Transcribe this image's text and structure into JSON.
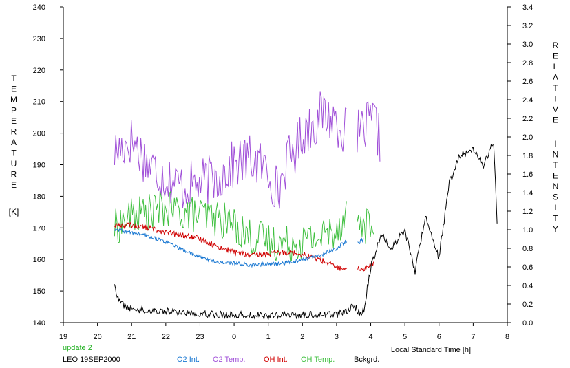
{
  "chart_data": {
    "type": "line",
    "left_axis": {
      "label_letters": [
        "T",
        "E",
        "M",
        "P",
        "E",
        "R",
        "A",
        "T",
        "U",
        "R",
        "E"
      ],
      "unit": "[K]",
      "ylim": [
        140,
        240
      ],
      "ticks": [
        140,
        150,
        160,
        170,
        180,
        190,
        200,
        210,
        220,
        230,
        240
      ]
    },
    "right_axis": {
      "label_word1_letters": [
        "R",
        "E",
        "L",
        "A",
        "T",
        "I",
        "V",
        "E"
      ],
      "label_word2_letters": [
        "I",
        "N",
        "T",
        "E",
        "N",
        "S",
        "I",
        "T",
        "Y"
      ],
      "ylim": [
        0.0,
        3.4
      ],
      "ticks": [
        "0.0",
        "0.2",
        "0.4",
        "0.6",
        "0.8",
        "1.0",
        "1.2",
        "1.4",
        "1.6",
        "1.8",
        "2.0",
        "2.2",
        "2.4",
        "2.6",
        "2.8",
        "3.0",
        "3.2",
        "3.4"
      ]
    },
    "x_axis": {
      "label": "Local Standard Time [h]",
      "xlim": [
        19,
        32
      ],
      "ticks": [
        "19",
        "20",
        "21",
        "22",
        "23",
        "0",
        "1",
        "2",
        "3",
        "4",
        "5",
        "6",
        "7",
        "8"
      ]
    },
    "update_text": "update 2",
    "station_text": "LEO 19SEP2000",
    "colors": {
      "o2_int": "#1a78d2",
      "o2_temp": "#a050d8",
      "oh_int": "#d00000",
      "oh_temp": "#40c040",
      "bckgrd": "#000000",
      "update": "#20b020"
    },
    "series": [
      {
        "key": "o2_temp",
        "name": "O2 Temp.",
        "axis": "left",
        "x": [
          20.5,
          21,
          21.5,
          22,
          22.5,
          23,
          23.5,
          24,
          24.5,
          25,
          25.3,
          25.5,
          25.8,
          26,
          26.3,
          26.6,
          27,
          27.3,
          27.5,
          27.8,
          28.1,
          28.3
        ],
        "y": [
          194,
          198,
          190,
          186,
          183,
          184,
          186,
          190,
          192,
          188,
          181,
          190,
          195,
          200,
          203,
          206,
          204,
          200,
          198,
          201,
          204,
          196
        ],
        "noise": 8,
        "step": 0.035,
        "gap": [
          27.3,
          27.6
        ]
      },
      {
        "key": "oh_temp",
        "name": "OH Temp.",
        "axis": "left",
        "x": [
          20.5,
          21,
          21.5,
          22,
          22.5,
          23,
          23.5,
          24,
          24.5,
          25,
          25.5,
          26,
          26.5,
          27,
          27.3,
          27.6,
          27.8,
          28.1
        ],
        "y": [
          170,
          174,
          175,
          176,
          175,
          174,
          173,
          171,
          167,
          166,
          165,
          166,
          167,
          170,
          175,
          172,
          171,
          170
        ],
        "noise": 6,
        "step": 0.035,
        "gap": [
          27.3,
          27.6
        ]
      },
      {
        "key": "oh_int",
        "name": "OH Int.",
        "axis": "right",
        "x": [
          20.5,
          21,
          21.5,
          22,
          22.5,
          23,
          23.5,
          24,
          24.5,
          25,
          25.5,
          26,
          26.5,
          27,
          27.3,
          27.6,
          27.8,
          28.1
        ],
        "y": [
          1.05,
          1.05,
          1.02,
          0.97,
          0.94,
          0.9,
          0.82,
          0.76,
          0.72,
          0.74,
          0.76,
          0.74,
          0.68,
          0.6,
          0.56,
          0.58,
          0.58,
          0.64
        ],
        "noise": 0.03,
        "step": 0.02,
        "gap": [
          27.3,
          27.6
        ]
      },
      {
        "key": "o2_int",
        "name": "O2 Int.",
        "axis": "right",
        "x": [
          20.5,
          21,
          21.5,
          22,
          22.5,
          23,
          23.5,
          24,
          24.5,
          25,
          25.5,
          26,
          26.5,
          27,
          27.3,
          27.6,
          27.8
        ],
        "y": [
          1.0,
          0.97,
          0.93,
          0.87,
          0.78,
          0.71,
          0.65,
          0.64,
          0.62,
          0.63,
          0.64,
          0.68,
          0.72,
          0.8,
          0.88,
          0.85,
          0.9
        ],
        "noise": 0.02,
        "step": 0.02,
        "gap": [
          27.3,
          27.6
        ]
      },
      {
        "key": "bckgrd",
        "name": "Bckgrd.",
        "axis": "right",
        "x": [
          20.5,
          20.6,
          20.8,
          21,
          21.5,
          22,
          22.5,
          23,
          23.5,
          24,
          24.5,
          25,
          25.5,
          26,
          26.5,
          27,
          27.3,
          27.5,
          27.7,
          27.8,
          28,
          28.3,
          28.6,
          29,
          29.3,
          29.6,
          30,
          30.3,
          30.6,
          31,
          31.3,
          31.6,
          31.7
        ],
        "y": [
          0.42,
          0.25,
          0.18,
          0.15,
          0.13,
          0.12,
          0.11,
          0.1,
          0.09,
          0.08,
          0.08,
          0.07,
          0.08,
          0.08,
          0.09,
          0.09,
          0.12,
          0.18,
          0.1,
          0.14,
          0.6,
          0.95,
          0.8,
          1.0,
          0.55,
          1.15,
          0.7,
          1.5,
          1.8,
          1.85,
          1.7,
          1.95,
          1.1
        ],
        "noise": 0.04,
        "step": 0.025
      }
    ]
  }
}
